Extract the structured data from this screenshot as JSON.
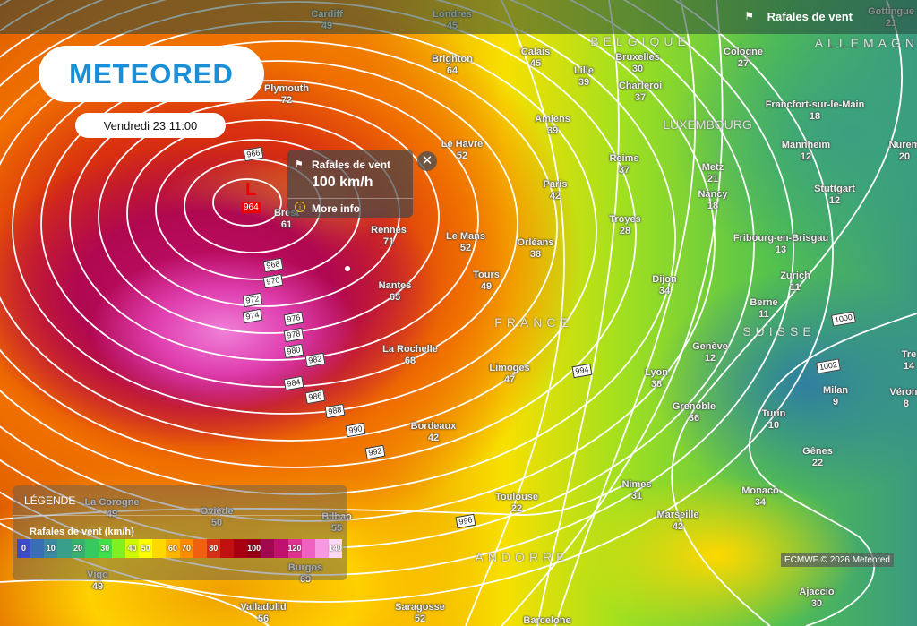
{
  "header": {
    "layer_title": "Rafales de vent",
    "layer_icon": "wind-flag-icon"
  },
  "logo": "METEORED",
  "date": "Vendredi 23 11:00",
  "popup": {
    "title": "Rafales de vent",
    "value": "100 km/h",
    "more_info": "More info"
  },
  "low": {
    "symbol": "L",
    "pressure": "964"
  },
  "isobars": [
    "966",
    "968",
    "970",
    "972",
    "974",
    "976",
    "978",
    "980",
    "982",
    "984",
    "986",
    "988",
    "990",
    "992",
    "994",
    "996",
    "1000",
    "1002"
  ],
  "countries": [
    "BELGIQUE",
    "LUXEMBOURG",
    "ALLEMAGNE",
    "FRANCE",
    "SUISSE",
    "ANDORRE"
  ],
  "cities": [
    {
      "name": "Cardiff",
      "value": "49"
    },
    {
      "name": "Londres",
      "value": "45"
    },
    {
      "name": "Brighton",
      "value": "64"
    },
    {
      "name": "Plymouth",
      "value": "72"
    },
    {
      "name": "Calais",
      "value": "45"
    },
    {
      "name": "Lille",
      "value": "39"
    },
    {
      "name": "Bruxelles",
      "value": "30"
    },
    {
      "name": "Charleroi",
      "value": "37"
    },
    {
      "name": "Cologne",
      "value": "27"
    },
    {
      "name": "Gottingue",
      "value": "21"
    },
    {
      "name": "Francfort-sur-le-Main",
      "value": "18"
    },
    {
      "name": "Mannheim",
      "value": "12"
    },
    {
      "name": "Nurem",
      "value": "20"
    },
    {
      "name": "Stuttgart",
      "value": "12"
    },
    {
      "name": "Le Havre",
      "value": "52"
    },
    {
      "name": "Amiens",
      "value": "39"
    },
    {
      "name": "Reims",
      "value": "37"
    },
    {
      "name": "Metz",
      "value": "21"
    },
    {
      "name": "Nancy",
      "value": "18"
    },
    {
      "name": "Paris",
      "value": "42"
    },
    {
      "name": "Troyes",
      "value": "28"
    },
    {
      "name": "Brest",
      "value": "61"
    },
    {
      "name": "Rennes",
      "value": "71"
    },
    {
      "name": "Le Mans",
      "value": "52"
    },
    {
      "name": "Orléans",
      "value": "38"
    },
    {
      "name": "Tours",
      "value": "49"
    },
    {
      "name": "Dijon",
      "value": "34"
    },
    {
      "name": "Fribourg-en-Brisgau",
      "value": "13"
    },
    {
      "name": "Zurich",
      "value": "11"
    },
    {
      "name": "Berne",
      "value": "11"
    },
    {
      "name": "Nantes",
      "value": "65"
    },
    {
      "name": "La Rochelle",
      "value": "68"
    },
    {
      "name": "Limoges",
      "value": "47"
    },
    {
      "name": "Lyon",
      "value": "38"
    },
    {
      "name": "Genève",
      "value": "12"
    },
    {
      "name": "Grenoble",
      "value": "36"
    },
    {
      "name": "Milan",
      "value": "9"
    },
    {
      "name": "Vérone",
      "value": "8"
    },
    {
      "name": "Tre",
      "value": "14"
    },
    {
      "name": "Turin",
      "value": "10"
    },
    {
      "name": "Bordeaux",
      "value": "42"
    },
    {
      "name": "Gênes",
      "value": "22"
    },
    {
      "name": "Toulouse",
      "value": "22"
    },
    {
      "name": "Nimes",
      "value": "31"
    },
    {
      "name": "Marseille",
      "value": "42"
    },
    {
      "name": "Monaco",
      "value": "34"
    },
    {
      "name": "Ajaccio",
      "value": "30"
    },
    {
      "name": "La Corogne",
      "value": "49"
    },
    {
      "name": "Oviède",
      "value": "50"
    },
    {
      "name": "Bilbao",
      "value": "55"
    },
    {
      "name": "Vigo",
      "value": "49"
    },
    {
      "name": "Burgos",
      "value": "69"
    },
    {
      "name": "Valladolid",
      "value": "56"
    },
    {
      "name": "Saragosse",
      "value": "52"
    },
    {
      "name": "Barcelone",
      "value": ""
    }
  ],
  "legend": {
    "title": "LÉGENDE",
    "unit_label": "Rafales de vent (km/h)",
    "scale": [
      {
        "label": "0",
        "color": "#3c4cc8"
      },
      {
        "label": "",
        "color": "#3a6eb4"
      },
      {
        "label": "10",
        "color": "#3a8aa0"
      },
      {
        "label": "",
        "color": "#38a08a"
      },
      {
        "label": "20",
        "color": "#38b070"
      },
      {
        "label": "",
        "color": "#38c860"
      },
      {
        "label": "30",
        "color": "#40e048"
      },
      {
        "label": "",
        "color": "#80f020"
      },
      {
        "label": "40",
        "color": "#d0f800"
      },
      {
        "label": "50",
        "color": "#ffff00"
      },
      {
        "label": "",
        "color": "#ffd800"
      },
      {
        "label": "60",
        "color": "#ffb400"
      },
      {
        "label": "70",
        "color": "#ff8c00"
      },
      {
        "label": "",
        "color": "#f06010"
      },
      {
        "label": "80",
        "color": "#d83018"
      },
      {
        "label": "",
        "color": "#c01010"
      },
      {
        "label": "",
        "color": "#a80010"
      },
      {
        "label": "100",
        "color": "#980018"
      },
      {
        "label": "",
        "color": "#a00850"
      },
      {
        "label": "",
        "color": "#c01070"
      },
      {
        "label": "120",
        "color": "#e03090"
      },
      {
        "label": "",
        "color": "#f060c0"
      },
      {
        "label": "",
        "color": "#f898e0"
      },
      {
        "label": "140",
        "color": "#fcd8f4"
      }
    ]
  },
  "credit": "ECMWF © 2026 Meteored"
}
